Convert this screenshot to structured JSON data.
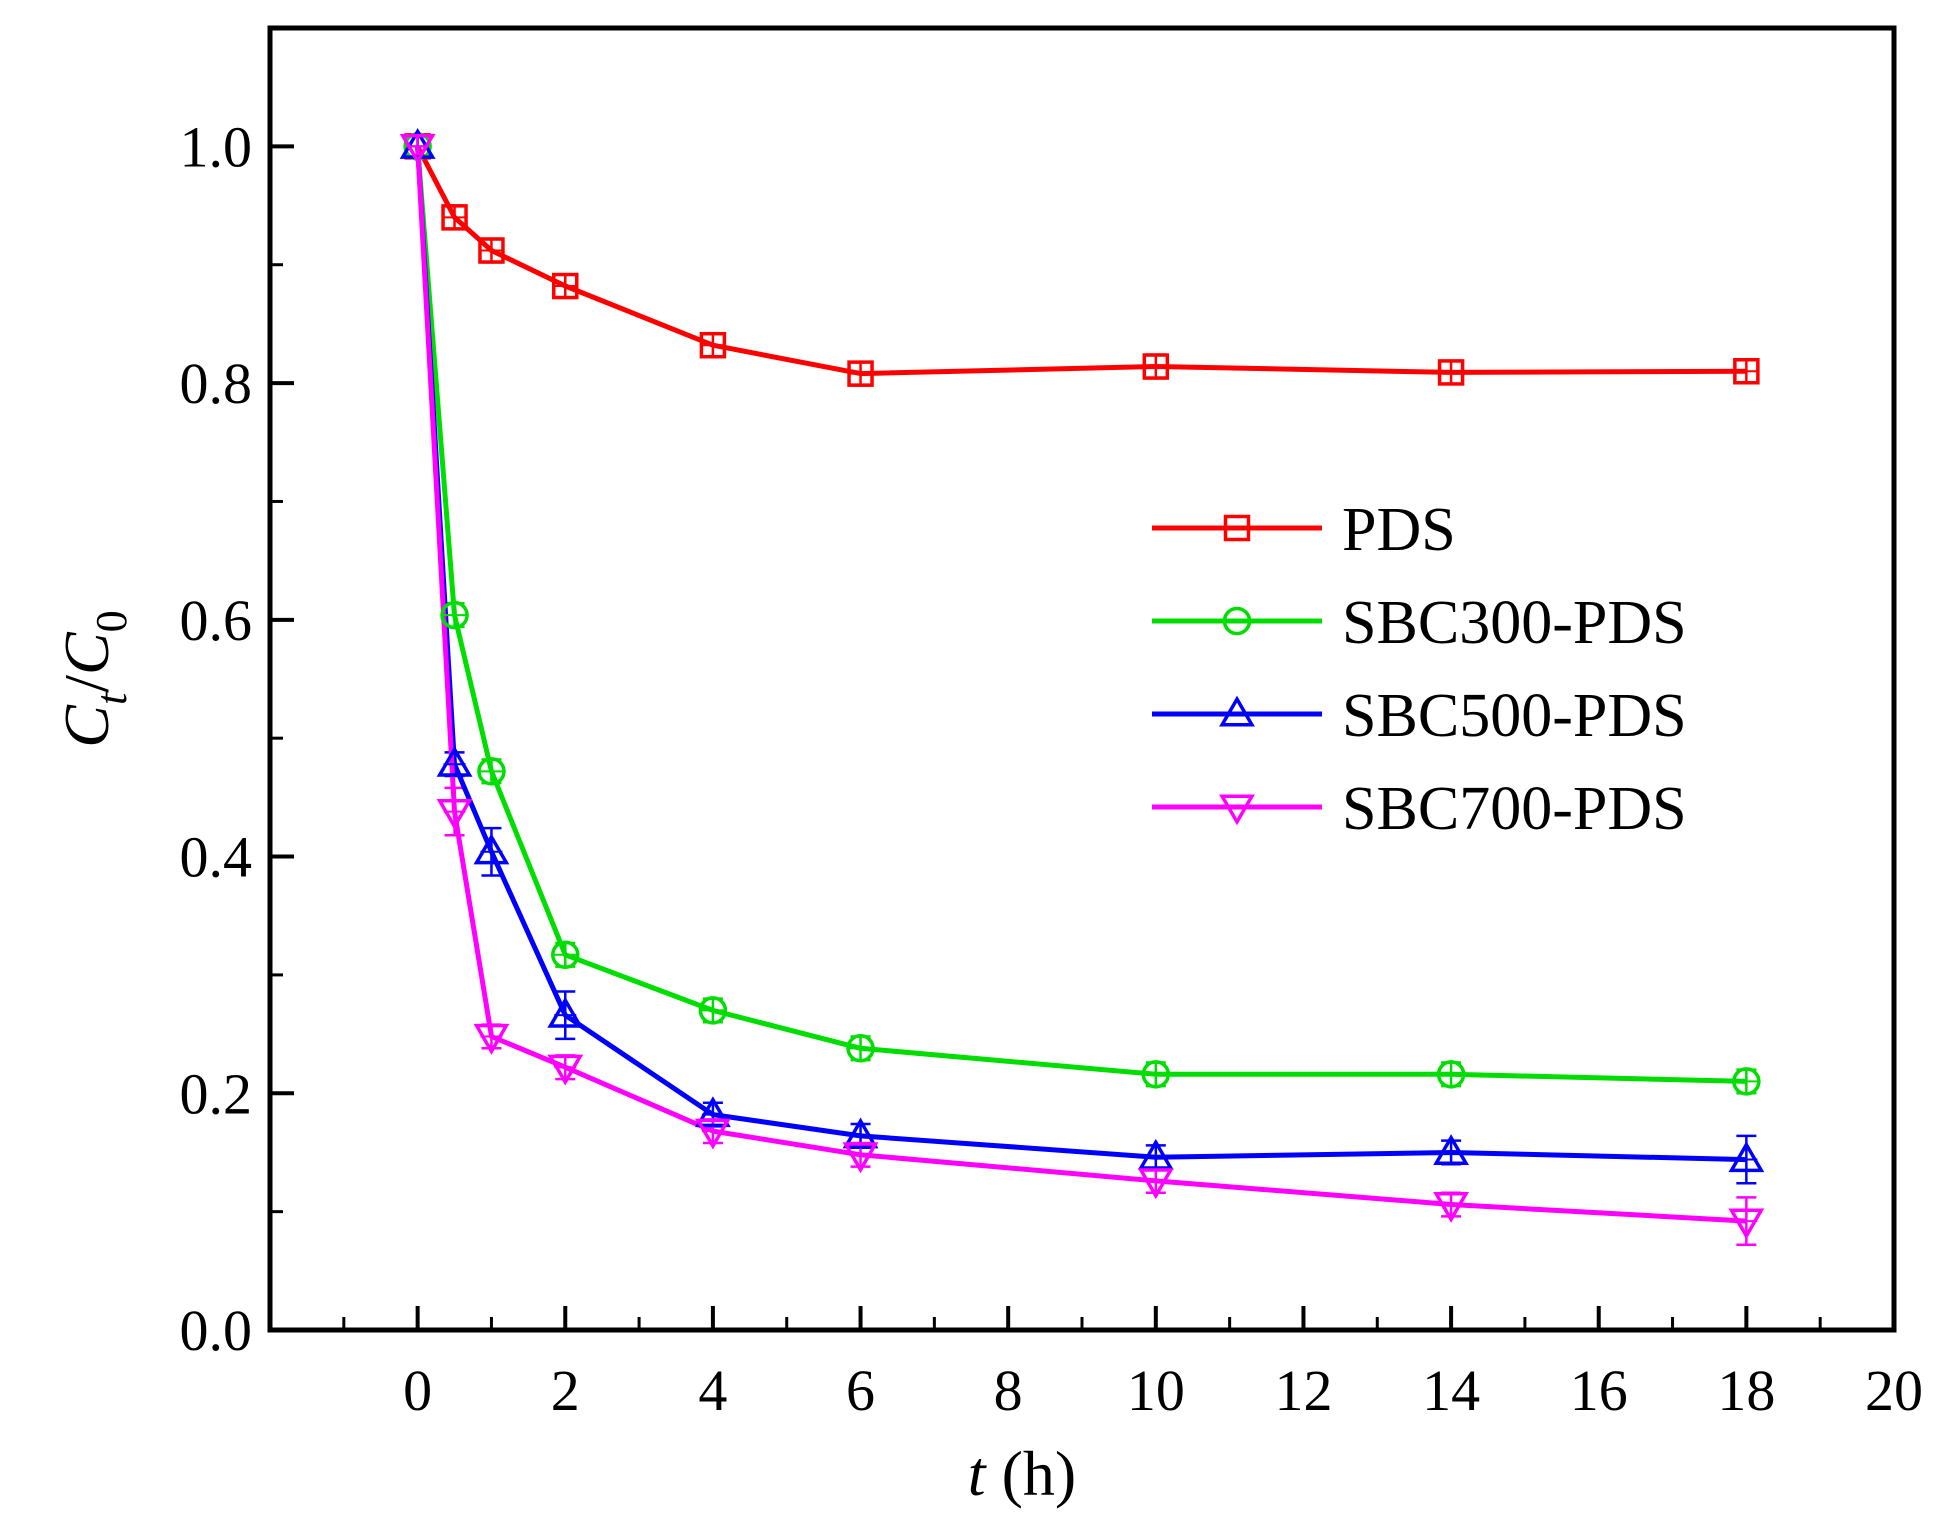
{
  "chart_data": {
    "type": "line",
    "title": "",
    "xlabel": {
      "var": "t",
      "unit": " (h)"
    },
    "ylabel": {
      "num": "C",
      "num_sub": "t",
      "slash": "/",
      "den": "C",
      "den_sub": "0"
    },
    "xlim": [
      -2,
      20
    ],
    "ylim": [
      0,
      1.1
    ],
    "x_ticks": [
      0,
      2,
      4,
      6,
      8,
      10,
      12,
      14,
      16,
      18,
      20
    ],
    "x_tick_labels": [
      "0",
      "2",
      "4",
      "6",
      "8",
      "10",
      "12",
      "14",
      "16",
      "18",
      "20"
    ],
    "y_ticks": [
      0,
      0.2,
      0.4,
      0.6,
      0.8,
      1.0
    ],
    "y_tick_labels": [
      "0.0",
      "0.2",
      "0.4",
      "0.6",
      "0.8",
      "1.0"
    ],
    "grid": false,
    "legend_position": "right-middle",
    "x": [
      0,
      0.5,
      1,
      2,
      4,
      6,
      10,
      14,
      18
    ],
    "series": [
      {
        "name": "PDS",
        "color": "#ff0000",
        "marker": "square",
        "values": [
          1.0,
          0.94,
          0.912,
          0.882,
          0.832,
          0.808,
          0.814,
          0.809,
          0.81
        ],
        "error": [
          0.01,
          0.01,
          0.01,
          0.01,
          0.01,
          0.01,
          0.01,
          0.01,
          0.01
        ]
      },
      {
        "name": "SBC300-PDS",
        "color": "#00dd00",
        "marker": "circle",
        "values": [
          1.0,
          0.604,
          0.472,
          0.317,
          0.27,
          0.238,
          0.216,
          0.216,
          0.21
        ],
        "error": [
          0.01,
          0.01,
          0.01,
          0.01,
          0.01,
          0.01,
          0.01,
          0.01,
          0.01
        ]
      },
      {
        "name": "SBC500-PDS",
        "color": "#0000ff",
        "marker": "triangle-up",
        "values": [
          1.0,
          0.478,
          0.404,
          0.266,
          0.182,
          0.164,
          0.146,
          0.15,
          0.144
        ],
        "error": [
          0.01,
          0.01,
          0.02,
          0.02,
          0.01,
          0.01,
          0.01,
          0.01,
          0.02
        ]
      },
      {
        "name": "SBC700-PDS",
        "color": "#ff00ff",
        "marker": "triangle-down",
        "values": [
          1.0,
          0.438,
          0.248,
          0.222,
          0.168,
          0.148,
          0.126,
          0.106,
          0.092
        ],
        "error": [
          0.01,
          0.02,
          0.01,
          0.01,
          0.01,
          0.01,
          0.01,
          0.01,
          0.02
        ]
      }
    ]
  }
}
